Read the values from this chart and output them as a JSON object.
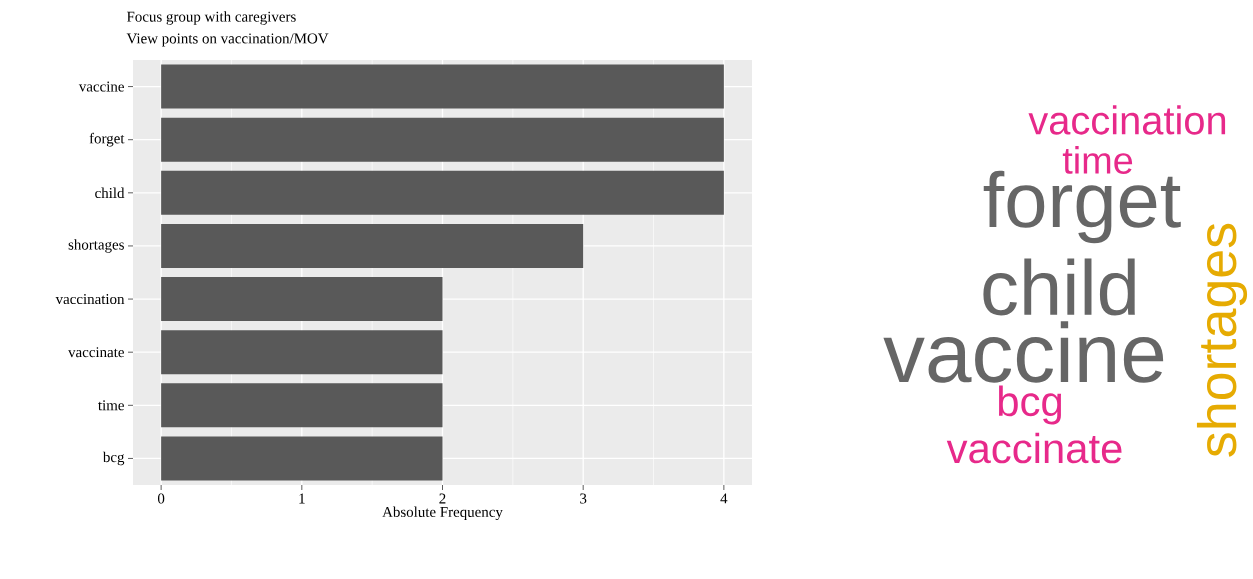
{
  "chart_data": [
    {
      "type": "bar",
      "orientation": "horizontal",
      "title": "Focus group with caregivers",
      "subtitle": "View points on vaccination/MOV",
      "xlabel": "Absolute Frequency",
      "categories": [
        "vaccine",
        "forget",
        "child",
        "shortages",
        "vaccination",
        "vaccinate",
        "time",
        "bcg"
      ],
      "values": [
        4,
        4,
        4,
        3,
        2,
        2,
        2,
        2
      ],
      "color": "#595959",
      "xlim": [
        -0.2,
        4.2
      ],
      "xticks": [
        0,
        1,
        2,
        3,
        4
      ],
      "grid": true
    },
    {
      "type": "other",
      "annotations": [
        "vaccination",
        "time",
        "forget",
        "child",
        "vaccine",
        "bcg",
        "vaccinate",
        "shortages"
      ],
      "colors": [
        "#e7298a",
        "#e7298a",
        "#666666",
        "#666666",
        "#666666",
        "#e7298a",
        "#e7298a",
        "#e6ab02"
      ]
    }
  ]
}
